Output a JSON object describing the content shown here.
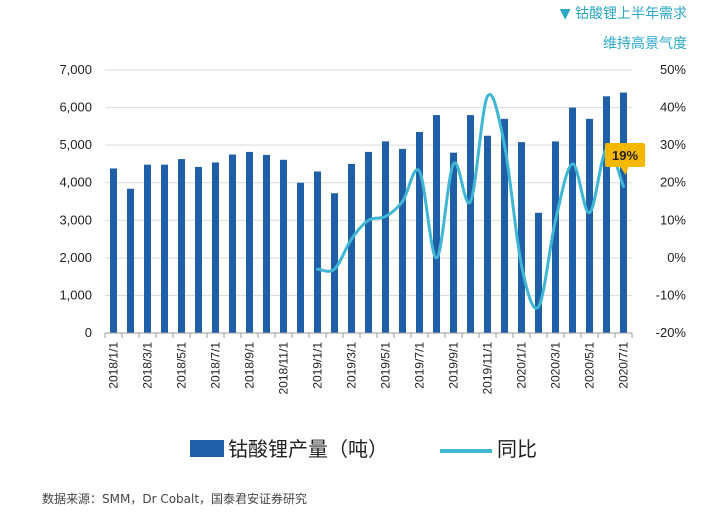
{
  "header": {
    "line1": "▼ 钴酸锂上半年需求",
    "line2": "维持高景气度"
  },
  "source_note": "数据来源：SMM，Dr Cobalt，国泰君安证券研究",
  "colors": {
    "bar": "#1F5FA8",
    "line": "#3FB6D3",
    "callout": "#F5B800",
    "header": "#2AA7C6"
  },
  "chart_data": {
    "type": "bar",
    "title": "",
    "categories": [
      "2018/1/1",
      "2018/2/1",
      "2018/3/1",
      "2018/4/1",
      "2018/5/1",
      "2018/6/1",
      "2018/7/1",
      "2018/8/1",
      "2018/9/1",
      "2018/10/1",
      "2018/11/1",
      "2018/12/1",
      "2019/1/1",
      "2019/2/1",
      "2019/3/1",
      "2019/4/1",
      "2019/5/1",
      "2019/6/1",
      "2019/7/1",
      "2019/8/1",
      "2019/9/1",
      "2019/10/1",
      "2019/11/1",
      "2019/12/1",
      "2020/1/1",
      "2020/2/1",
      "2020/3/1",
      "2020/4/1",
      "2020/5/1",
      "2020/6/1",
      "2020/7/1"
    ],
    "x_tick_labels": [
      "2018/1/1",
      "2018/3/1",
      "2018/5/1",
      "2018/7/1",
      "2018/9/1",
      "2018/11/1",
      "2019/1/1",
      "2019/3/1",
      "2019/5/1",
      "2019/7/1",
      "2019/9/1",
      "2019/11/1",
      "2020/1/1",
      "2020/3/1",
      "2020/5/1",
      "2020/7/1"
    ],
    "series": [
      {
        "name": "钴酸锂产量（吨）",
        "type": "bar",
        "axis": "left",
        "values": [
          4380,
          3840,
          4480,
          4480,
          4630,
          4420,
          4540,
          4750,
          4820,
          4740,
          4610,
          4000,
          4300,
          3720,
          4500,
          4820,
          5100,
          4900,
          5350,
          5800,
          4800,
          5800,
          5250,
          5700,
          5080,
          3200,
          5100,
          6000,
          5700,
          6300,
          6400
        ]
      },
      {
        "name": "同比",
        "type": "line",
        "axis": "right",
        "values": [
          null,
          null,
          null,
          null,
          null,
          null,
          null,
          null,
          null,
          null,
          null,
          null,
          -3,
          -3,
          5,
          10,
          11,
          15,
          23,
          0,
          25,
          15,
          43,
          30,
          -2,
          -13,
          10,
          25,
          12,
          29,
          19
        ]
      }
    ],
    "yleft": {
      "min": 0,
      "max": 7000,
      "ticks": [
        "0",
        "1,000",
        "2,000",
        "3,000",
        "4,000",
        "5,000",
        "6,000",
        "7,000"
      ]
    },
    "yright": {
      "min": -20,
      "max": 50,
      "ticks": [
        "-20%",
        "-10%",
        "0%",
        "10%",
        "20%",
        "30%",
        "40%",
        "50%"
      ]
    },
    "callout": {
      "label": "19%",
      "category": "2020/7/1"
    },
    "legend": {
      "position": "bottom"
    },
    "grid": true
  }
}
